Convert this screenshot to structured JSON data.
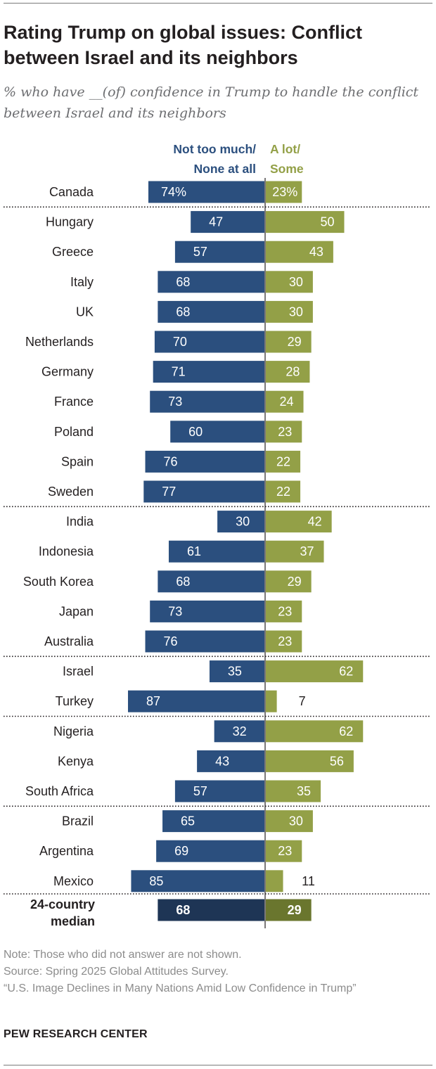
{
  "title": "Rating Trump on global issues: Conflict between Israel and its neighbors",
  "subtitle": "% who have __(of) confidence in Trump to handle the conflict between Israel and its neighbors",
  "legend": {
    "negative_line1": "Not too much/",
    "negative_line2": "None at all",
    "positive_line1": "A lot/",
    "positive_line2": "Some"
  },
  "colors": {
    "negative": "#2b4f7e",
    "positive": "#93a047",
    "median_negative": "#1e3555",
    "median_positive": "#6a762e"
  },
  "chart_data": {
    "type": "bar",
    "orientation": "horizontal-diverging",
    "title": "Rating Trump on global issues: Conflict between Israel and its neighbors",
    "unit": "%",
    "series": [
      {
        "name": "Not too much/None at all",
        "values": [
          74,
          47,
          57,
          68,
          68,
          70,
          71,
          73,
          60,
          76,
          77,
          30,
          61,
          68,
          73,
          76,
          35,
          87,
          32,
          43,
          57,
          65,
          69,
          85,
          68
        ]
      },
      {
        "name": "A lot/Some",
        "values": [
          23,
          50,
          43,
          30,
          30,
          29,
          28,
          24,
          23,
          22,
          22,
          42,
          37,
          29,
          23,
          23,
          62,
          7,
          62,
          56,
          35,
          30,
          23,
          11,
          29
        ]
      }
    ],
    "categories": [
      "Canada",
      "Hungary",
      "Greece",
      "Italy",
      "UK",
      "Netherlands",
      "Germany",
      "France",
      "Poland",
      "Spain",
      "Sweden",
      "India",
      "Indonesia",
      "South Korea",
      "Japan",
      "Australia",
      "Israel",
      "Turkey",
      "Nigeria",
      "Kenya",
      "South Africa",
      "Brazil",
      "Argentina",
      "Mexico",
      "24-country median"
    ],
    "labels_negative": [
      "74%",
      "47",
      "57",
      "68",
      "68",
      "70",
      "71",
      "73",
      "60",
      "76",
      "77",
      "30",
      "61",
      "68",
      "73",
      "76",
      "35",
      "87",
      "32",
      "43",
      "57",
      "65",
      "69",
      "85",
      "68"
    ],
    "labels_positive": [
      "23%",
      "50",
      "43",
      "30",
      "30",
      "29",
      "28",
      "24",
      "23",
      "22",
      "22",
      "42",
      "37",
      "29",
      "23",
      "23",
      "62",
      "7",
      "62",
      "56",
      "35",
      "30",
      "23",
      "11",
      "29"
    ],
    "group_separators_after": [
      "Canada",
      "Sweden",
      "Australia",
      "Turkey",
      "South Africa",
      "Mexico"
    ],
    "median_label_line1": "24-country",
    "median_label_line2": "median"
  },
  "notes": {
    "note": "Note: Those who did not answer are not shown.",
    "source": "Source: Spring 2025 Global Attitudes Survey.",
    "report": "“U.S. Image Declines in Many Nations Amid Low Confidence in Trump”"
  },
  "brand": "PEW RESEARCH CENTER"
}
